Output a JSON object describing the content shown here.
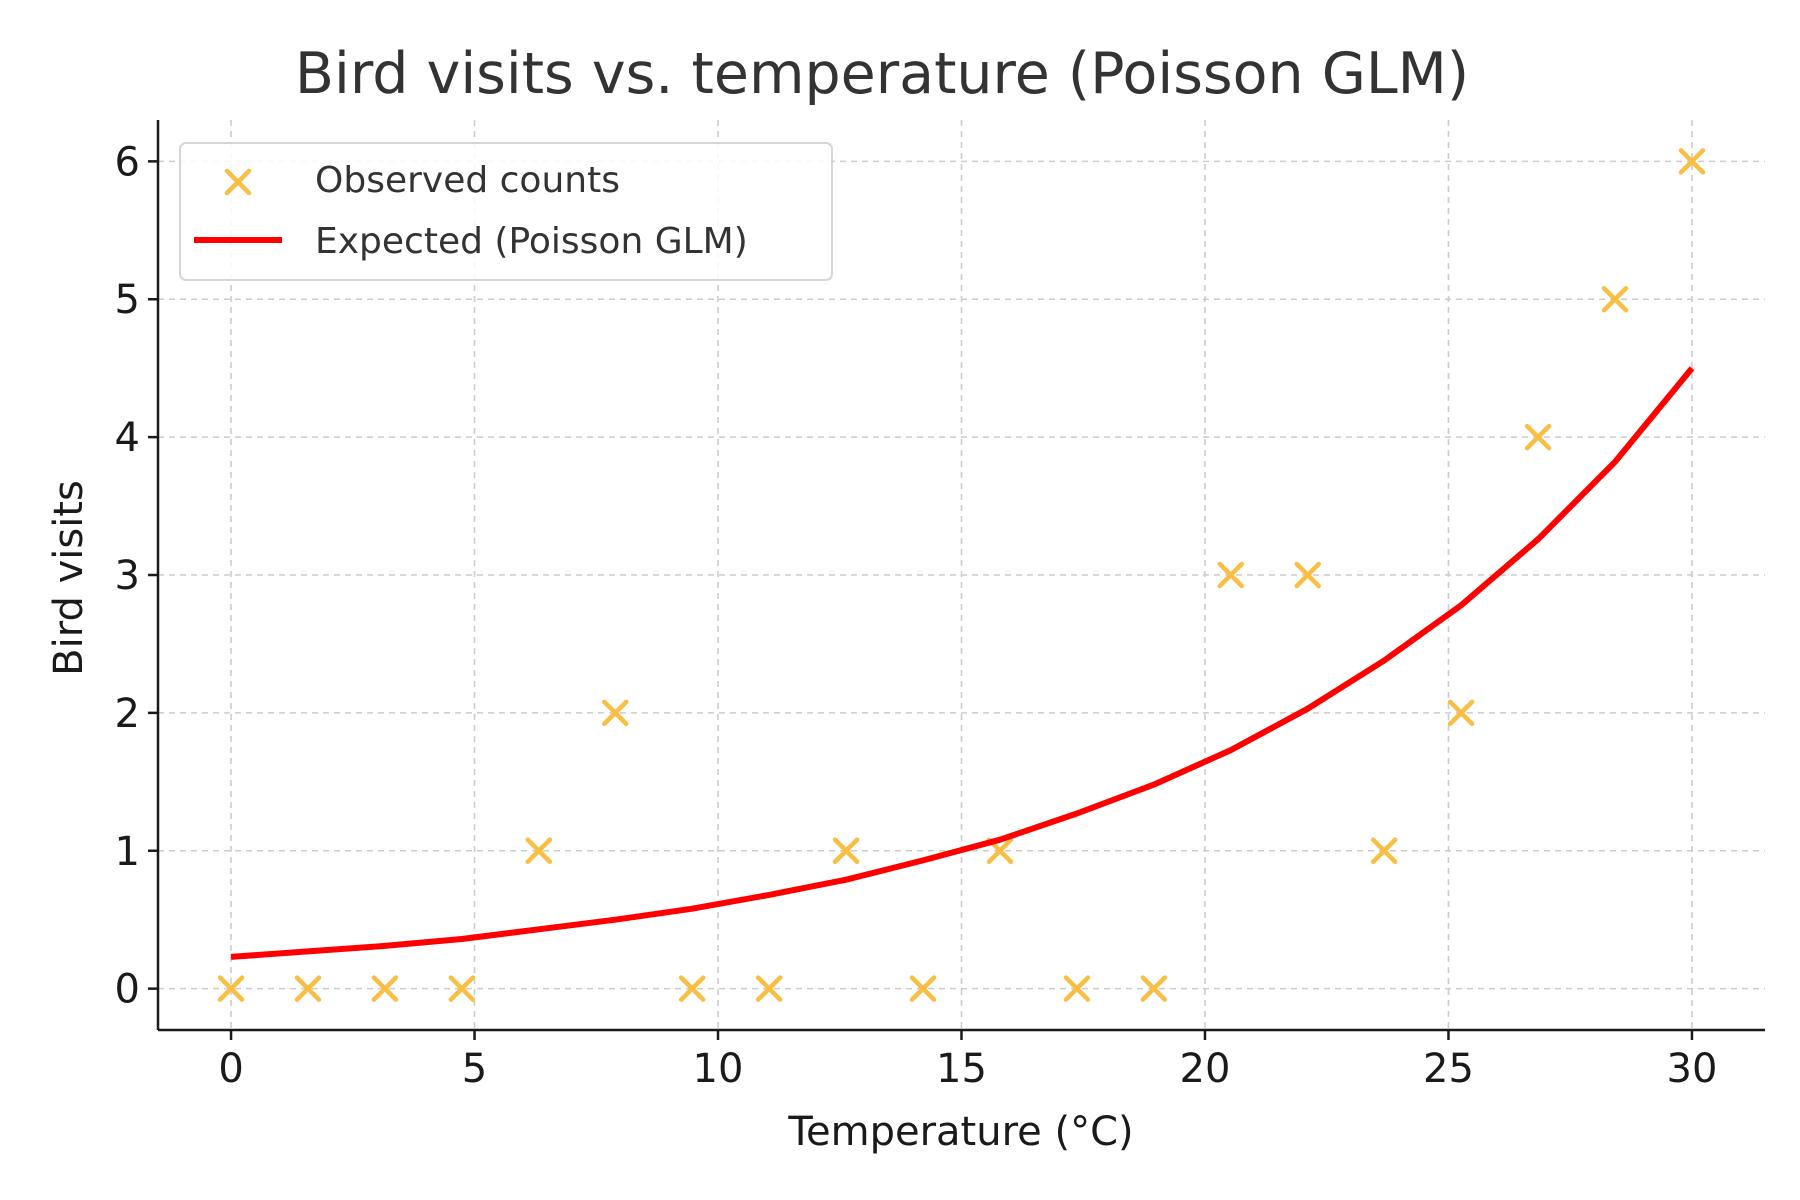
{
  "chart_data": {
    "type": "scatter",
    "title": "Bird visits vs. temperature (Poisson GLM)",
    "xlabel": "Temperature (°C)",
    "ylabel": "Bird visits",
    "xlim": [
      -1.5,
      31.5
    ],
    "ylim": [
      -0.3,
      6.3
    ],
    "xticks": [
      0,
      5,
      10,
      15,
      20,
      25,
      30
    ],
    "yticks": [
      0,
      1,
      2,
      3,
      4,
      5,
      6
    ],
    "grid": true,
    "legend_position": "top-left",
    "series": [
      {
        "name": "Observed counts",
        "type": "scatter",
        "marker": "x",
        "color": "#f9bf45",
        "x": [
          0,
          1.58,
          3.16,
          4.74,
          6.32,
          7.89,
          9.47,
          11.05,
          12.63,
          14.21,
          15.79,
          17.37,
          18.95,
          20.53,
          22.11,
          23.68,
          25.26,
          26.84,
          28.42,
          30
        ],
        "y": [
          0,
          0,
          0,
          0,
          1,
          2,
          0,
          0,
          1,
          0,
          1,
          0,
          0,
          3,
          3,
          1,
          2,
          4,
          5,
          6
        ]
      },
      {
        "name": "Expected (Poisson GLM)",
        "type": "line",
        "color": "#ff0000",
        "x": [
          0,
          1.58,
          3.16,
          4.74,
          6.32,
          7.89,
          9.47,
          11.05,
          12.63,
          14.21,
          15.79,
          17.37,
          18.95,
          20.53,
          22.11,
          23.68,
          25.26,
          26.84,
          28.42,
          30
        ],
        "y": [
          0.23,
          0.27,
          0.31,
          0.36,
          0.43,
          0.5,
          0.58,
          0.68,
          0.79,
          0.93,
          1.08,
          1.27,
          1.48,
          1.73,
          2.03,
          2.38,
          2.78,
          3.26,
          3.82,
          4.5
        ]
      }
    ]
  }
}
